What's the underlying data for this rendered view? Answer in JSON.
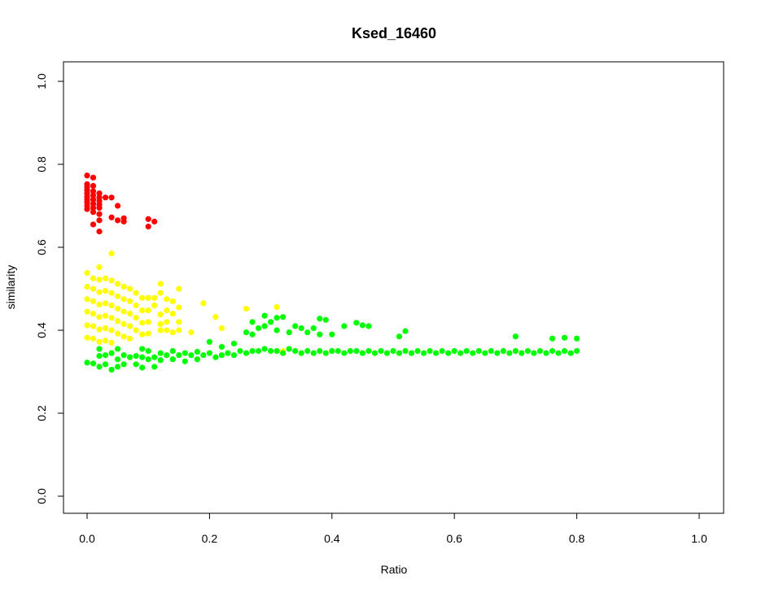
{
  "chart_data": {
    "type": "scatter",
    "title": "Ksed_16460",
    "xlabel": "Ratio",
    "ylabel": "similarity",
    "xlim": [
      0,
      1
    ],
    "ylim": [
      0,
      1
    ],
    "xticks": [
      "0.0",
      "0.2",
      "0.4",
      "0.6",
      "0.8",
      "1.0"
    ],
    "yticks": [
      "0.0",
      "0.2",
      "0.4",
      "0.6",
      "0.8",
      "1.0"
    ],
    "grid": false,
    "legend": "none",
    "colors": {
      "red": "#ff0000",
      "yellow": "#ffff00",
      "green": "#00ff00"
    },
    "series": [
      {
        "color": "#ff0000",
        "points": [
          [
            0.0,
            0.773
          ],
          [
            0.0,
            0.752
          ],
          [
            0.0,
            0.745
          ],
          [
            0.0,
            0.738
          ],
          [
            0.0,
            0.73
          ],
          [
            0.0,
            0.722
          ],
          [
            0.0,
            0.715
          ],
          [
            0.0,
            0.708
          ],
          [
            0.0,
            0.7
          ],
          [
            0.0,
            0.692
          ],
          [
            0.01,
            0.768
          ],
          [
            0.01,
            0.748
          ],
          [
            0.01,
            0.735
          ],
          [
            0.01,
            0.725
          ],
          [
            0.01,
            0.715
          ],
          [
            0.01,
            0.705
          ],
          [
            0.01,
            0.695
          ],
          [
            0.01,
            0.685
          ],
          [
            0.01,
            0.655
          ],
          [
            0.02,
            0.73
          ],
          [
            0.02,
            0.72
          ],
          [
            0.02,
            0.712
          ],
          [
            0.02,
            0.703
          ],
          [
            0.02,
            0.695
          ],
          [
            0.02,
            0.68
          ],
          [
            0.02,
            0.665
          ],
          [
            0.02,
            0.638
          ],
          [
            0.03,
            0.72
          ],
          [
            0.04,
            0.72
          ],
          [
            0.04,
            0.672
          ],
          [
            0.05,
            0.7
          ],
          [
            0.05,
            0.665
          ],
          [
            0.06,
            0.67
          ],
          [
            0.06,
            0.662
          ],
          [
            0.1,
            0.668
          ],
          [
            0.1,
            0.65
          ],
          [
            0.11,
            0.662
          ]
        ]
      },
      {
        "color": "#ffff00",
        "points": [
          [
            0.0,
            0.538
          ],
          [
            0.0,
            0.505
          ],
          [
            0.0,
            0.475
          ],
          [
            0.0,
            0.445
          ],
          [
            0.0,
            0.412
          ],
          [
            0.0,
            0.382
          ],
          [
            0.01,
            0.525
          ],
          [
            0.01,
            0.5
          ],
          [
            0.01,
            0.47
          ],
          [
            0.01,
            0.44
          ],
          [
            0.01,
            0.41
          ],
          [
            0.01,
            0.38
          ],
          [
            0.02,
            0.552
          ],
          [
            0.02,
            0.522
          ],
          [
            0.02,
            0.492
          ],
          [
            0.02,
            0.462
          ],
          [
            0.02,
            0.432
          ],
          [
            0.02,
            0.402
          ],
          [
            0.02,
            0.372
          ],
          [
            0.03,
            0.525
          ],
          [
            0.03,
            0.495
          ],
          [
            0.03,
            0.465
          ],
          [
            0.03,
            0.435
          ],
          [
            0.03,
            0.405
          ],
          [
            0.03,
            0.375
          ],
          [
            0.04,
            0.585
          ],
          [
            0.04,
            0.52
          ],
          [
            0.04,
            0.49
          ],
          [
            0.04,
            0.46
          ],
          [
            0.04,
            0.43
          ],
          [
            0.04,
            0.4
          ],
          [
            0.04,
            0.37
          ],
          [
            0.05,
            0.512
          ],
          [
            0.05,
            0.482
          ],
          [
            0.05,
            0.452
          ],
          [
            0.05,
            0.422
          ],
          [
            0.05,
            0.392
          ],
          [
            0.06,
            0.505
          ],
          [
            0.06,
            0.475
          ],
          [
            0.06,
            0.445
          ],
          [
            0.06,
            0.415
          ],
          [
            0.06,
            0.385
          ],
          [
            0.07,
            0.5
          ],
          [
            0.07,
            0.47
          ],
          [
            0.07,
            0.44
          ],
          [
            0.07,
            0.41
          ],
          [
            0.07,
            0.38
          ],
          [
            0.08,
            0.49
          ],
          [
            0.08,
            0.46
          ],
          [
            0.08,
            0.43
          ],
          [
            0.08,
            0.4
          ],
          [
            0.09,
            0.478
          ],
          [
            0.09,
            0.448
          ],
          [
            0.09,
            0.418
          ],
          [
            0.09,
            0.39
          ],
          [
            0.1,
            0.478
          ],
          [
            0.1,
            0.448
          ],
          [
            0.1,
            0.42
          ],
          [
            0.1,
            0.392
          ],
          [
            0.11,
            0.478
          ],
          [
            0.11,
            0.46
          ],
          [
            0.12,
            0.512
          ],
          [
            0.12,
            0.49
          ],
          [
            0.12,
            0.438
          ],
          [
            0.12,
            0.415
          ],
          [
            0.12,
            0.4
          ],
          [
            0.13,
            0.475
          ],
          [
            0.13,
            0.448
          ],
          [
            0.13,
            0.42
          ],
          [
            0.13,
            0.4
          ],
          [
            0.14,
            0.47
          ],
          [
            0.14,
            0.44
          ],
          [
            0.14,
            0.395
          ],
          [
            0.15,
            0.5
          ],
          [
            0.15,
            0.455
          ],
          [
            0.15,
            0.42
          ],
          [
            0.15,
            0.4
          ],
          [
            0.17,
            0.395
          ],
          [
            0.19,
            0.465
          ],
          [
            0.21,
            0.432
          ],
          [
            0.22,
            0.405
          ],
          [
            0.26,
            0.452
          ],
          [
            0.31,
            0.456
          ],
          [
            0.32,
            0.35
          ]
        ]
      },
      {
        "color": "#00ff00",
        "points": [
          [
            0.0,
            0.322
          ],
          [
            0.01,
            0.32
          ],
          [
            0.02,
            0.355
          ],
          [
            0.02,
            0.338
          ],
          [
            0.02,
            0.312
          ],
          [
            0.03,
            0.34
          ],
          [
            0.03,
            0.318
          ],
          [
            0.04,
            0.345
          ],
          [
            0.04,
            0.305
          ],
          [
            0.05,
            0.355
          ],
          [
            0.05,
            0.33
          ],
          [
            0.05,
            0.312
          ],
          [
            0.06,
            0.34
          ],
          [
            0.06,
            0.318
          ],
          [
            0.07,
            0.335
          ],
          [
            0.08,
            0.338
          ],
          [
            0.08,
            0.318
          ],
          [
            0.09,
            0.355
          ],
          [
            0.09,
            0.335
          ],
          [
            0.09,
            0.31
          ],
          [
            0.1,
            0.35
          ],
          [
            0.1,
            0.33
          ],
          [
            0.11,
            0.335
          ],
          [
            0.11,
            0.312
          ],
          [
            0.12,
            0.345
          ],
          [
            0.12,
            0.328
          ],
          [
            0.13,
            0.34
          ],
          [
            0.14,
            0.35
          ],
          [
            0.14,
            0.33
          ],
          [
            0.15,
            0.34
          ],
          [
            0.16,
            0.345
          ],
          [
            0.16,
            0.325
          ],
          [
            0.17,
            0.34
          ],
          [
            0.18,
            0.348
          ],
          [
            0.18,
            0.33
          ],
          [
            0.19,
            0.34
          ],
          [
            0.2,
            0.372
          ],
          [
            0.2,
            0.345
          ],
          [
            0.21,
            0.335
          ],
          [
            0.22,
            0.36
          ],
          [
            0.22,
            0.34
          ],
          [
            0.23,
            0.345
          ],
          [
            0.24,
            0.368
          ],
          [
            0.24,
            0.34
          ],
          [
            0.25,
            0.35
          ],
          [
            0.26,
            0.395
          ],
          [
            0.26,
            0.345
          ],
          [
            0.27,
            0.42
          ],
          [
            0.27,
            0.39
          ],
          [
            0.27,
            0.35
          ],
          [
            0.28,
            0.405
          ],
          [
            0.28,
            0.35
          ],
          [
            0.29,
            0.435
          ],
          [
            0.29,
            0.41
          ],
          [
            0.29,
            0.355
          ],
          [
            0.3,
            0.42
          ],
          [
            0.3,
            0.35
          ],
          [
            0.31,
            0.43
          ],
          [
            0.31,
            0.4
          ],
          [
            0.31,
            0.35
          ],
          [
            0.32,
            0.432
          ],
          [
            0.32,
            0.345
          ],
          [
            0.33,
            0.395
          ],
          [
            0.33,
            0.355
          ],
          [
            0.34,
            0.41
          ],
          [
            0.34,
            0.35
          ],
          [
            0.35,
            0.405
          ],
          [
            0.35,
            0.345
          ],
          [
            0.36,
            0.395
          ],
          [
            0.36,
            0.35
          ],
          [
            0.37,
            0.405
          ],
          [
            0.37,
            0.345
          ],
          [
            0.38,
            0.428
          ],
          [
            0.38,
            0.39
          ],
          [
            0.38,
            0.35
          ],
          [
            0.39,
            0.425
          ],
          [
            0.39,
            0.345
          ],
          [
            0.4,
            0.39
          ],
          [
            0.4,
            0.35
          ],
          [
            0.41,
            0.35
          ],
          [
            0.42,
            0.41
          ],
          [
            0.42,
            0.345
          ],
          [
            0.43,
            0.35
          ],
          [
            0.44,
            0.418
          ],
          [
            0.44,
            0.35
          ],
          [
            0.45,
            0.412
          ],
          [
            0.45,
            0.345
          ],
          [
            0.46,
            0.41
          ],
          [
            0.46,
            0.35
          ],
          [
            0.47,
            0.345
          ],
          [
            0.48,
            0.35
          ],
          [
            0.49,
            0.345
          ],
          [
            0.5,
            0.35
          ],
          [
            0.51,
            0.385
          ],
          [
            0.51,
            0.345
          ],
          [
            0.52,
            0.398
          ],
          [
            0.52,
            0.35
          ],
          [
            0.53,
            0.345
          ],
          [
            0.54,
            0.35
          ],
          [
            0.55,
            0.345
          ],
          [
            0.56,
            0.35
          ],
          [
            0.57,
            0.345
          ],
          [
            0.58,
            0.35
          ],
          [
            0.59,
            0.345
          ],
          [
            0.6,
            0.35
          ],
          [
            0.61,
            0.345
          ],
          [
            0.62,
            0.35
          ],
          [
            0.63,
            0.345
          ],
          [
            0.64,
            0.35
          ],
          [
            0.65,
            0.345
          ],
          [
            0.66,
            0.35
          ],
          [
            0.67,
            0.345
          ],
          [
            0.68,
            0.35
          ],
          [
            0.69,
            0.345
          ],
          [
            0.7,
            0.385
          ],
          [
            0.7,
            0.35
          ],
          [
            0.71,
            0.345
          ],
          [
            0.72,
            0.35
          ],
          [
            0.73,
            0.345
          ],
          [
            0.74,
            0.35
          ],
          [
            0.75,
            0.345
          ],
          [
            0.76,
            0.38
          ],
          [
            0.76,
            0.35
          ],
          [
            0.77,
            0.345
          ],
          [
            0.78,
            0.382
          ],
          [
            0.78,
            0.35
          ],
          [
            0.79,
            0.345
          ],
          [
            0.8,
            0.38
          ],
          [
            0.8,
            0.35
          ]
        ]
      }
    ]
  }
}
